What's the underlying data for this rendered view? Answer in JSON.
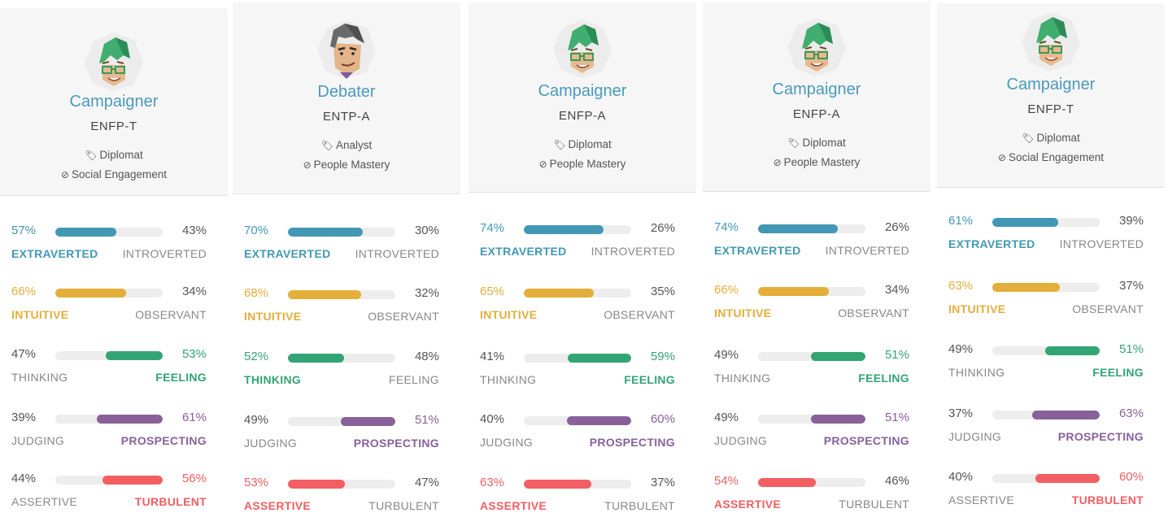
{
  "colors": {
    "mind": "#4298b4",
    "energy": "#e4ae3a",
    "nature": "#33a474",
    "tactics": "#88619a",
    "identity": "#f25e62"
  },
  "cards": [
    {
      "title": "Campaigner",
      "code": "ENFP-T",
      "role_icon": "tag-icon",
      "role": "Diplomat",
      "strategy_icon": "compass-icon",
      "strategy": "Social Engagement",
      "avatar": "campaigner-avatar",
      "traits": [
        {
          "key": "mind",
          "left_pct": "57%",
          "right_pct": "43%",
          "left_label": "EXTRAVERTED",
          "right_label": "INTROVERTED",
          "left_value": 0.57,
          "dominant": "left"
        },
        {
          "key": "energy",
          "left_pct": "66%",
          "right_pct": "34%",
          "left_label": "INTUITIVE",
          "right_label": "OBSERVANT",
          "left_value": 0.66,
          "dominant": "left"
        },
        {
          "key": "nature",
          "left_pct": "47%",
          "right_pct": "53%",
          "left_label": "THINKING",
          "right_label": "FEELING",
          "left_value": 0.47,
          "dominant": "right"
        },
        {
          "key": "tactics",
          "left_pct": "39%",
          "right_pct": "61%",
          "left_label": "JUDGING",
          "right_label": "PROSPECTING",
          "left_value": 0.39,
          "dominant": "right"
        },
        {
          "key": "identity",
          "left_pct": "44%",
          "right_pct": "56%",
          "left_label": "ASSERTIVE",
          "right_label": "TURBULENT",
          "left_value": 0.44,
          "dominant": "right"
        }
      ]
    },
    {
      "title": "Debater",
      "code": "ENTP-A",
      "role_icon": "tag-icon",
      "role": "Analyst",
      "strategy_icon": "compass-icon",
      "strategy": "People Mastery",
      "avatar": "debater-avatar",
      "traits": [
        {
          "key": "mind",
          "left_pct": "70%",
          "right_pct": "30%",
          "left_label": "EXTRAVERTED",
          "right_label": "INTROVERTED",
          "left_value": 0.7,
          "dominant": "left"
        },
        {
          "key": "energy",
          "left_pct": "68%",
          "right_pct": "32%",
          "left_label": "INTUITIVE",
          "right_label": "OBSERVANT",
          "left_value": 0.68,
          "dominant": "left"
        },
        {
          "key": "nature",
          "left_pct": "52%",
          "right_pct": "48%",
          "left_label": "THINKING",
          "right_label": "FEELING",
          "left_value": 0.52,
          "dominant": "left"
        },
        {
          "key": "tactics",
          "left_pct": "49%",
          "right_pct": "51%",
          "left_label": "JUDGING",
          "right_label": "PROSPECTING",
          "left_value": 0.49,
          "dominant": "right"
        },
        {
          "key": "identity",
          "left_pct": "53%",
          "right_pct": "47%",
          "left_label": "ASSERTIVE",
          "right_label": "TURBULENT",
          "left_value": 0.53,
          "dominant": "left"
        }
      ]
    },
    {
      "title": "Campaigner",
      "code": "ENFP-A",
      "role_icon": "tag-icon",
      "role": "Diplomat",
      "strategy_icon": "compass-icon",
      "strategy": "People Mastery",
      "avatar": "campaigner-avatar",
      "traits": [
        {
          "key": "mind",
          "left_pct": "74%",
          "right_pct": "26%",
          "left_label": "EXTRAVERTED",
          "right_label": "INTROVERTED",
          "left_value": 0.74,
          "dominant": "left"
        },
        {
          "key": "energy",
          "left_pct": "65%",
          "right_pct": "35%",
          "left_label": "INTUITIVE",
          "right_label": "OBSERVANT",
          "left_value": 0.65,
          "dominant": "left"
        },
        {
          "key": "nature",
          "left_pct": "41%",
          "right_pct": "59%",
          "left_label": "THINKING",
          "right_label": "FEELING",
          "left_value": 0.41,
          "dominant": "right"
        },
        {
          "key": "tactics",
          "left_pct": "40%",
          "right_pct": "60%",
          "left_label": "JUDGING",
          "right_label": "PROSPECTING",
          "left_value": 0.4,
          "dominant": "right"
        },
        {
          "key": "identity",
          "left_pct": "63%",
          "right_pct": "37%",
          "left_label": "ASSERTIVE",
          "right_label": "TURBULENT",
          "left_value": 0.63,
          "dominant": "left"
        }
      ]
    },
    {
      "title": "Campaigner",
      "code": "ENFP-A",
      "role_icon": "tag-icon",
      "role": "Diplomat",
      "strategy_icon": "compass-icon",
      "strategy": "People Mastery",
      "avatar": "campaigner-avatar",
      "traits": [
        {
          "key": "mind",
          "left_pct": "74%",
          "right_pct": "26%",
          "left_label": "EXTRAVERTED",
          "right_label": "INTROVERTED",
          "left_value": 0.74,
          "dominant": "left"
        },
        {
          "key": "energy",
          "left_pct": "66%",
          "right_pct": "34%",
          "left_label": "INTUITIVE",
          "right_label": "OBSERVANT",
          "left_value": 0.66,
          "dominant": "left"
        },
        {
          "key": "nature",
          "left_pct": "49%",
          "right_pct": "51%",
          "left_label": "THINKING",
          "right_label": "FEELING",
          "left_value": 0.49,
          "dominant": "right"
        },
        {
          "key": "tactics",
          "left_pct": "49%",
          "right_pct": "51%",
          "left_label": "JUDGING",
          "right_label": "PROSPECTING",
          "left_value": 0.49,
          "dominant": "right"
        },
        {
          "key": "identity",
          "left_pct": "54%",
          "right_pct": "46%",
          "left_label": "ASSERTIVE",
          "right_label": "TURBULENT",
          "left_value": 0.54,
          "dominant": "left"
        }
      ]
    },
    {
      "title": "Campaigner",
      "code": "ENFP-T",
      "role_icon": "tag-icon",
      "role": "Diplomat",
      "strategy_icon": "compass-icon",
      "strategy": "Social Engagement",
      "avatar": "campaigner-avatar",
      "traits": [
        {
          "key": "mind",
          "left_pct": "61%",
          "right_pct": "39%",
          "left_label": "EXTRAVERTED",
          "right_label": "INTROVERTED",
          "left_value": 0.61,
          "dominant": "left"
        },
        {
          "key": "energy",
          "left_pct": "63%",
          "right_pct": "37%",
          "left_label": "INTUITIVE",
          "right_label": "OBSERVANT",
          "left_value": 0.63,
          "dominant": "left"
        },
        {
          "key": "nature",
          "left_pct": "49%",
          "right_pct": "51%",
          "left_label": "THINKING",
          "right_label": "FEELING",
          "left_value": 0.49,
          "dominant": "right"
        },
        {
          "key": "tactics",
          "left_pct": "37%",
          "right_pct": "63%",
          "left_label": "JUDGING",
          "right_label": "PROSPECTING",
          "left_value": 0.37,
          "dominant": "right"
        },
        {
          "key": "identity",
          "left_pct": "40%",
          "right_pct": "60%",
          "left_label": "ASSERTIVE",
          "right_label": "TURBULENT",
          "left_value": 0.4,
          "dominant": "right"
        }
      ]
    }
  ]
}
